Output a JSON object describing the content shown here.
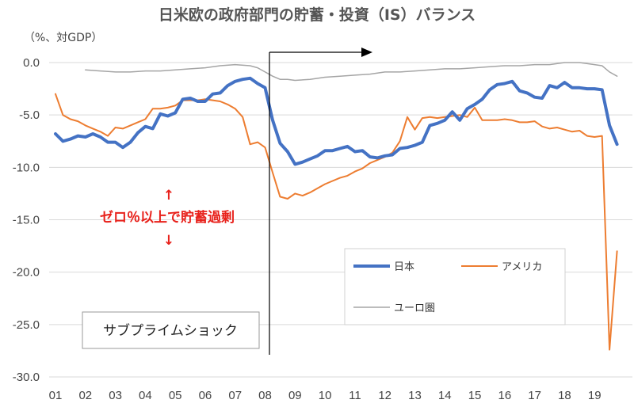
{
  "chart_data": {
    "type": "line",
    "title": "日米欧の政府部門の貯蓄・投資（IS）バランス",
    "ylabel": "（%、対GDP）",
    "ylim": [
      -30,
      0
    ],
    "yticks": [
      "0.0",
      "-5.0",
      "-10.0",
      "-15.0",
      "-20.0",
      "-25.0",
      "-30.0"
    ],
    "x_ticks": [
      "01",
      "02",
      "03",
      "04",
      "05",
      "06",
      "07",
      "08",
      "09",
      "10",
      "11",
      "12",
      "13",
      "14",
      "15",
      "16",
      "17",
      "18",
      "19"
    ],
    "xlim": [
      2001,
      2020
    ],
    "grid": true,
    "legend_placement": "right",
    "series": [
      {
        "name": "日本",
        "color": "#4472c4",
        "x": [
          2001.0,
          2001.25,
          2001.5,
          2001.75,
          2002.0,
          2002.25,
          2002.5,
          2002.75,
          2003.0,
          2003.25,
          2003.5,
          2003.75,
          2004.0,
          2004.25,
          2004.5,
          2004.75,
          2005.0,
          2005.25,
          2005.5,
          2005.75,
          2006.0,
          2006.25,
          2006.5,
          2006.75,
          2007.0,
          2007.25,
          2007.5,
          2007.75,
          2008.0,
          2008.25,
          2008.5,
          2008.75,
          2009.0,
          2009.25,
          2009.5,
          2009.75,
          2010.0,
          2010.25,
          2010.5,
          2010.75,
          2011.0,
          2011.25,
          2011.5,
          2011.75,
          2012.0,
          2012.25,
          2012.5,
          2012.75,
          2013.0,
          2013.25,
          2013.5,
          2013.75,
          2014.0,
          2014.25,
          2014.5,
          2014.75,
          2015.0,
          2015.25,
          2015.5,
          2015.75,
          2016.0,
          2016.25,
          2016.5,
          2016.75,
          2017.0,
          2017.25,
          2017.5,
          2017.75,
          2018.0,
          2018.25,
          2018.5,
          2018.75,
          2019.0,
          2019.25,
          2019.5,
          2019.75
        ],
        "values": [
          -6.8,
          -7.5,
          -7.3,
          -7.0,
          -7.1,
          -6.8,
          -7.1,
          -7.6,
          -7.6,
          -8.1,
          -7.6,
          -6.7,
          -6.1,
          -6.3,
          -4.9,
          -5.1,
          -4.8,
          -3.5,
          -3.4,
          -3.7,
          -3.7,
          -3.0,
          -2.9,
          -2.2,
          -1.8,
          -1.6,
          -1.5,
          -2.0,
          -2.4,
          -5.5,
          -7.7,
          -8.5,
          -9.7,
          -9.5,
          -9.2,
          -8.9,
          -8.4,
          -8.4,
          -8.2,
          -8.0,
          -8.5,
          -8.4,
          -9.0,
          -9.1,
          -8.9,
          -8.8,
          -8.2,
          -8.1,
          -7.9,
          -7.6,
          -6.0,
          -5.8,
          -5.5,
          -4.7,
          -5.5,
          -4.4,
          -4.0,
          -3.5,
          -2.6,
          -2.1,
          -2.0,
          -1.8,
          -2.7,
          -2.9,
          -3.3,
          -3.4,
          -2.2,
          -2.4,
          -1.9,
          -2.4,
          -2.4,
          -2.5,
          -2.5,
          -2.6,
          -6.0,
          -7.8
        ]
      },
      {
        "name": "アメリカ",
        "color": "#ed7d31",
        "x": [
          2001.0,
          2001.25,
          2001.5,
          2001.75,
          2002.0,
          2002.25,
          2002.5,
          2002.75,
          2003.0,
          2003.25,
          2003.5,
          2003.75,
          2004.0,
          2004.25,
          2004.5,
          2004.75,
          2005.0,
          2005.25,
          2005.5,
          2005.75,
          2006.0,
          2006.25,
          2006.5,
          2006.75,
          2007.0,
          2007.25,
          2007.5,
          2007.75,
          2008.0,
          2008.25,
          2008.5,
          2008.75,
          2009.0,
          2009.25,
          2009.5,
          2009.75,
          2010.0,
          2010.25,
          2010.5,
          2010.75,
          2011.0,
          2011.25,
          2011.5,
          2011.75,
          2012.0,
          2012.25,
          2012.5,
          2012.75,
          2013.0,
          2013.25,
          2013.5,
          2013.75,
          2014.0,
          2014.25,
          2014.5,
          2014.75,
          2015.0,
          2015.25,
          2015.5,
          2015.75,
          2016.0,
          2016.25,
          2016.5,
          2016.75,
          2017.0,
          2017.25,
          2017.5,
          2017.75,
          2018.0,
          2018.25,
          2018.5,
          2018.75,
          2019.0,
          2019.25,
          2019.5,
          2019.75
        ],
        "values": [
          -3.0,
          -5.0,
          -5.4,
          -5.6,
          -6.0,
          -6.3,
          -6.6,
          -7.0,
          -6.2,
          -6.3,
          -6.0,
          -5.7,
          -5.4,
          -4.4,
          -4.4,
          -4.3,
          -4.1,
          -3.6,
          -3.6,
          -3.6,
          -3.5,
          -3.6,
          -3.7,
          -4.0,
          -4.4,
          -5.2,
          -7.8,
          -7.6,
          -8.1,
          -10.5,
          -12.8,
          -13.0,
          -12.5,
          -12.7,
          -12.4,
          -12.0,
          -11.6,
          -11.3,
          -11.0,
          -10.8,
          -10.4,
          -10.1,
          -9.6,
          -9.3,
          -9.0,
          -8.6,
          -7.5,
          -5.2,
          -6.4,
          -5.3,
          -5.2,
          -5.3,
          -5.2,
          -5.1,
          -5.0,
          -5.2,
          -4.3,
          -5.5,
          -5.5,
          -5.5,
          -5.4,
          -5.5,
          -5.7,
          -5.7,
          -5.6,
          -6.1,
          -6.3,
          -6.2,
          -6.4,
          -6.6,
          -6.5,
          -7.0,
          -7.1,
          -7.0,
          -27.4,
          -18.0
        ]
      },
      {
        "name": "ユーロ圏",
        "color": "#a5a5a5",
        "x": [
          2002.0,
          2002.5,
          2003.0,
          2003.5,
          2004.0,
          2004.5,
          2005.0,
          2005.5,
          2006.0,
          2006.5,
          2007.0,
          2007.5,
          2007.75,
          2008.0,
          2008.25,
          2008.5,
          2008.75,
          2009.0,
          2009.5,
          2010.0,
          2010.5,
          2011.0,
          2011.5,
          2012.0,
          2012.5,
          2013.0,
          2013.5,
          2014.0,
          2014.5,
          2015.0,
          2015.5,
          2016.0,
          2016.5,
          2017.0,
          2017.5,
          2018.0,
          2018.5,
          2019.0,
          2019.25,
          2019.5,
          2019.75
        ],
        "values": [
          -0.7,
          -0.8,
          -0.9,
          -0.9,
          -0.8,
          -0.8,
          -0.7,
          -0.6,
          -0.5,
          -0.3,
          -0.2,
          -0.3,
          -0.5,
          -0.9,
          -1.3,
          -1.6,
          -1.6,
          -1.7,
          -1.6,
          -1.4,
          -1.3,
          -1.2,
          -1.1,
          -0.9,
          -0.9,
          -0.8,
          -0.7,
          -0.6,
          -0.6,
          -0.5,
          -0.4,
          -0.3,
          -0.3,
          -0.2,
          -0.2,
          0.0,
          0.0,
          -0.2,
          -0.3,
          -0.9,
          -1.3
        ]
      }
    ],
    "annotations": {
      "arrow_up": "↑",
      "savings_text": "ゼロ％以上で貯蓄過剰",
      "arrow_down": "↓",
      "event_box": "サブプライムショック"
    }
  }
}
